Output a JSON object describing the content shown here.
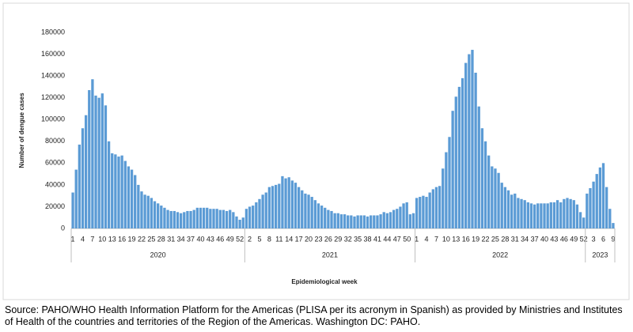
{
  "chart_data": {
    "type": "bar",
    "y_label": "Number of dengue cases",
    "x_label": "Epidemiological week",
    "source": "Source: PAHO/WHO Health Information Platform for the Americas (PLISA per its acronym in Spanish) as provided by Ministries and Institutes of Health of the countries and territories of the Region of the Americas. Washington DC: PAHO.",
    "color": "#5b9bd5",
    "ylim": [
      0,
      180000
    ],
    "yticks": [
      0,
      20000,
      40000,
      60000,
      80000,
      100000,
      120000,
      140000,
      160000,
      180000
    ],
    "groups": [
      {
        "label": "2020",
        "categories": [
          "1",
          null,
          null,
          "4",
          null,
          null,
          "7",
          null,
          null,
          "10",
          null,
          null,
          "13",
          null,
          null,
          "16",
          null,
          null,
          "19",
          null,
          null,
          "22",
          null,
          null,
          "25",
          null,
          null,
          "28",
          null,
          null,
          "31",
          null,
          null,
          "34",
          null,
          null,
          "37",
          null,
          null,
          "40",
          null,
          null,
          "43",
          null,
          null,
          "46",
          null,
          null,
          "49",
          null,
          null,
          "52",
          null
        ],
        "values": [
          33000,
          54000,
          77000,
          92000,
          104000,
          127000,
          137000,
          122000,
          120000,
          124000,
          113000,
          80000,
          69000,
          68000,
          66000,
          67000,
          62000,
          57000,
          54000,
          49000,
          40000,
          34000,
          31000,
          30000,
          28000,
          25000,
          23000,
          21000,
          19000,
          17000,
          16000,
          16000,
          15000,
          14000,
          15000,
          16000,
          16000,
          17000,
          19000,
          19000,
          19000,
          19000,
          18000,
          18000,
          18000,
          17000,
          17000,
          16000,
          17000,
          15000,
          11000,
          8000,
          10000
        ]
      },
      {
        "label": "2021",
        "categories": [
          null,
          "2",
          null,
          null,
          "5",
          null,
          null,
          "8",
          null,
          null,
          "11",
          null,
          null,
          "14",
          null,
          null,
          "17",
          null,
          null,
          "20",
          null,
          null,
          "23",
          null,
          null,
          "26",
          null,
          null,
          "29",
          null,
          null,
          "32",
          null,
          null,
          "35",
          null,
          null,
          "38",
          null,
          null,
          "41",
          null,
          null,
          "44",
          null,
          null,
          "47",
          null,
          null,
          "50",
          null,
          null
        ],
        "values": [
          18000,
          20000,
          21000,
          24000,
          27000,
          31000,
          33000,
          38000,
          39000,
          40000,
          41000,
          48000,
          46000,
          47000,
          44000,
          42000,
          38000,
          35000,
          32000,
          31000,
          29000,
          26000,
          23000,
          21000,
          19000,
          17000,
          16000,
          14000,
          14000,
          13000,
          13000,
          12000,
          12000,
          11000,
          12000,
          12000,
          12000,
          11000,
          12000,
          12000,
          12000,
          13000,
          15000,
          14000,
          15000,
          17000,
          18000,
          20000,
          23000,
          24000,
          13000,
          14000
        ]
      },
      {
        "label": "2022",
        "categories": [
          "1",
          null,
          null,
          "4",
          null,
          null,
          "7",
          null,
          null,
          "10",
          null,
          null,
          "13",
          null,
          null,
          "16",
          null,
          null,
          "19",
          null,
          null,
          "22",
          null,
          null,
          "25",
          null,
          null,
          "28",
          null,
          null,
          "31",
          null,
          null,
          "34",
          null,
          null,
          "37",
          null,
          null,
          "40",
          null,
          null,
          "43",
          null,
          null,
          "46",
          null,
          null,
          "49",
          null,
          null,
          "52"
        ],
        "values": [
          28000,
          29000,
          30000,
          29000,
          33000,
          36000,
          38000,
          39000,
          55000,
          70000,
          84000,
          108000,
          121000,
          130000,
          138000,
          152000,
          160000,
          164000,
          143000,
          112000,
          92000,
          80000,
          67000,
          57000,
          55000,
          51000,
          42000,
          38000,
          35000,
          31000,
          32000,
          28000,
          27000,
          26000,
          24000,
          23000,
          22000,
          23000,
          23000,
          23000,
          23000,
          24000,
          24000,
          26000,
          24000,
          27000,
          28000,
          27000,
          26000,
          22000,
          15000,
          10000
        ]
      },
      {
        "label": "2023",
        "categories": [
          null,
          null,
          "3",
          null,
          null,
          "6",
          null,
          null,
          "9"
        ],
        "values": [
          32000,
          37000,
          43000,
          50000,
          56000,
          60000,
          38000,
          18000,
          5000
        ]
      }
    ]
  }
}
